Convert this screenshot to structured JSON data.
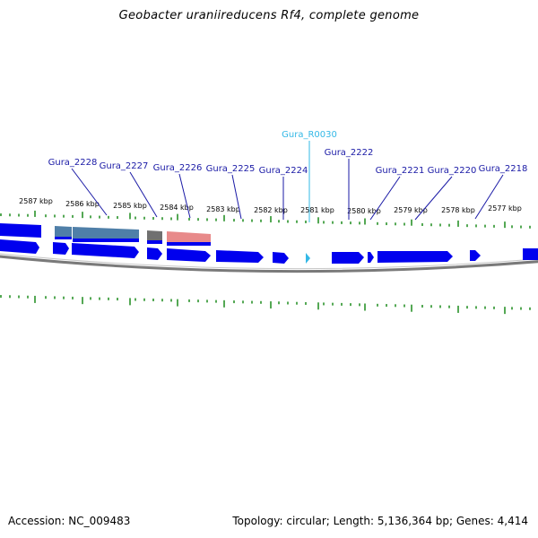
{
  "title": "Geobacter uraniireducens Rf4, complete genome",
  "footer": {
    "accession": "Accession: NC_009483",
    "stats": "Topology: circular; Length: 5,136,364 bp; Genes: 4,414"
  },
  "colors": {
    "cds": "#0000ee",
    "cds_shadow": "#2a2ad0",
    "trna": "#33b8e6",
    "tick": "#1a8a1a",
    "label_blue": "#1a1aa6",
    "label_cyan": "#33b8e6",
    "highlight_blue": "#4f7fa8",
    "highlight_gray": "#707070",
    "highlight_red": "#e88a8a",
    "backbone": "#7a7a7a"
  },
  "scale_labels": [
    "2587 kbp",
    "2586 kbp",
    "2585 kbp",
    "2584 kbp",
    "2583 kbp",
    "2582 kbp",
    "2581 kbp",
    "2580 kbp",
    "2579 kbp",
    "2578 kbp",
    "2577 kbp"
  ],
  "gene_labels": [
    {
      "name": "Gura_2228",
      "type": "cds"
    },
    {
      "name": "Gura_2227",
      "type": "cds"
    },
    {
      "name": "Gura_2226",
      "type": "cds"
    },
    {
      "name": "Gura_2225",
      "type": "cds"
    },
    {
      "name": "Gura_2224",
      "type": "cds"
    },
    {
      "name": "Gura_R0030",
      "type": "trna"
    },
    {
      "name": "Gura_2222",
      "type": "cds"
    },
    {
      "name": "Gura_2221",
      "type": "cds"
    },
    {
      "name": "Gura_2220",
      "type": "cds"
    },
    {
      "name": "Gura_2218",
      "type": "cds"
    }
  ]
}
